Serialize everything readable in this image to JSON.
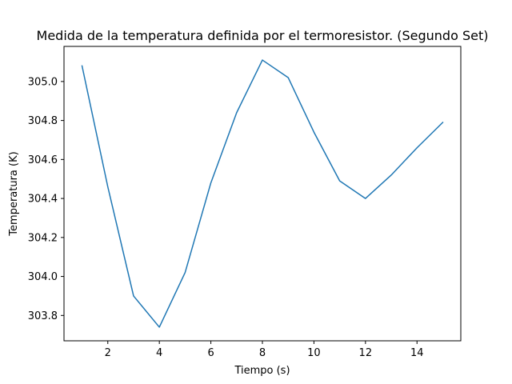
{
  "chart_data": {
    "type": "line",
    "title": "Medida de la temperatura definida por el termoresistor. (Segundo Set)",
    "xlabel": "Tiempo (s)",
    "ylabel": "Temperatura (K)",
    "xlim": [
      0.3,
      15.7
    ],
    "ylim": [
      303.67,
      305.18
    ],
    "grid": false,
    "x_ticks": [
      2,
      4,
      6,
      8,
      10,
      12,
      14
    ],
    "x_tick_labels": [
      "2",
      "4",
      "6",
      "8",
      "10",
      "12",
      "14"
    ],
    "y_ticks": [
      303.8,
      304.0,
      304.2,
      304.4,
      304.6,
      304.8,
      305.0
    ],
    "y_tick_labels": [
      "303.8",
      "304.0",
      "304.2",
      "304.4",
      "304.6",
      "304.8",
      "305.0"
    ],
    "series": [
      {
        "color": "#1f77b4",
        "x": [
          1,
          2,
          3,
          4,
          5,
          6,
          7,
          8,
          9,
          10,
          11,
          12,
          13,
          14,
          15
        ],
        "y": [
          305.08,
          304.46,
          303.9,
          303.74,
          304.02,
          304.48,
          304.84,
          305.11,
          305.02,
          304.74,
          304.49,
          304.4,
          304.52,
          304.66,
          304.79
        ]
      }
    ]
  }
}
